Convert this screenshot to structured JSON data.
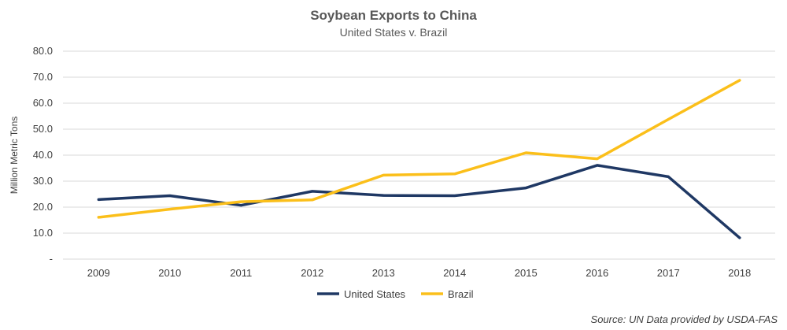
{
  "chart_data": {
    "type": "line",
    "title": "Soybean Exports to China",
    "subtitle": "United States v. Brazil",
    "ylabel": "Million Metric Tons",
    "xlabel": "",
    "x": [
      "2009",
      "2010",
      "2011",
      "2012",
      "2013",
      "2014",
      "2015",
      "2016",
      "2017",
      "2018"
    ],
    "ylim": [
      0,
      80
    ],
    "yticks": [
      0,
      10,
      20,
      30,
      40,
      50,
      60,
      70,
      80
    ],
    "ytick_labels": [
      "-",
      "10.0",
      "20.0",
      "30.0",
      "40.0",
      "50.0",
      "60.0",
      "70.0",
      "80.0"
    ],
    "grid": true,
    "legend_position": "bottom",
    "series": [
      {
        "name": "United States",
        "color": "#1f3864",
        "values": [
          22.9,
          24.4,
          20.7,
          26.1,
          24.5,
          24.4,
          27.4,
          36.1,
          31.7,
          8.2
        ]
      },
      {
        "name": "Brazil",
        "color": "#fbbf1a",
        "values": [
          16.1,
          19.2,
          22.1,
          22.8,
          32.3,
          32.8,
          40.9,
          38.6,
          53.8,
          68.8
        ]
      }
    ],
    "source": "Source: UN Data provided by USDA-FAS"
  }
}
